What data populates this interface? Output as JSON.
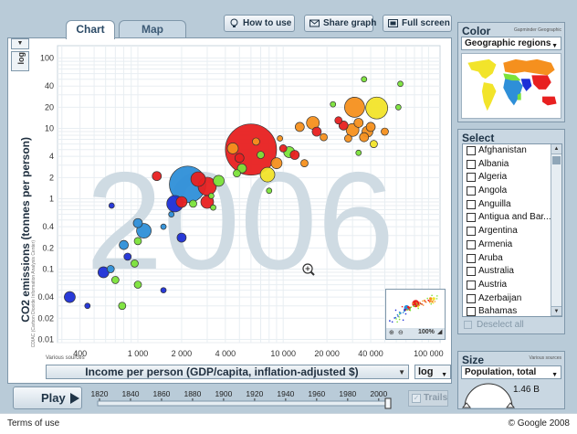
{
  "tabs": [
    {
      "label": "Chart"
    },
    {
      "label": "Map"
    }
  ],
  "toolbar": {
    "how_to_use": "How to use",
    "share_graph": "Share graph",
    "full_screen": "Full screen"
  },
  "y_axis": {
    "scale": "log",
    "title": "CO2 emissions (tonnes per person)",
    "source": "CDIAC (Carbon Dioxide Information Analysis Center)"
  },
  "x_axis": {
    "scale": "log",
    "title": "Income per person (GDP/capita, inflation-adjusted $)",
    "source": "Various sources"
  },
  "year_watermark": "2006",
  "play": {
    "label": "Play"
  },
  "timeline": {
    "ticks": [
      "1820",
      "1840",
      "1860",
      "1880",
      "1900",
      "1920",
      "1940",
      "1960",
      "1980",
      "2000"
    ],
    "current_year": 2006,
    "range": [
      1820,
      2006
    ]
  },
  "trails": {
    "label": "Trails"
  },
  "color_panel": {
    "title": "Color",
    "source": "Gapminder Geographic",
    "selected": "Geographic regions"
  },
  "select_panel": {
    "title": "Select",
    "countries": [
      "Afghanistan",
      "Albania",
      "Algeria",
      "Angola",
      "Anguilla",
      "Antigua and Bar...",
      "Argentina",
      "Armenia",
      "Aruba",
      "Australia",
      "Austria",
      "Azerbaijan",
      "Bahamas"
    ],
    "deselect_all": "Deselect all"
  },
  "size_panel": {
    "title": "Size",
    "source": "Various sources",
    "selected": "Population, total",
    "value": "1.46 B"
  },
  "minimap": {
    "zoom": "100%"
  },
  "footer": {
    "terms": "Terms of use",
    "copyright": "© Google 2008"
  },
  "colors": {
    "africa": "#2e8fd8",
    "south_asia": "#1d2fd6",
    "europe_central_asia": "#f2e42a",
    "middle_east": "#7be33a",
    "east_asia": "#e82020",
    "america": "#f5901e"
  },
  "chart_data": {
    "type": "scatter",
    "xlabel": "Income per person (GDP/capita, inflation-adjusted $)",
    "ylabel": "CO2 emissions (tonnes per person)",
    "xscale": "log",
    "yscale": "log",
    "xlim": [
      280,
      120000
    ],
    "ylim": [
      0.009,
      150
    ],
    "x_ticks": [
      400,
      1000,
      2000,
      4000,
      10000,
      20000,
      40000,
      100000
    ],
    "x_tick_labels": [
      "400",
      "1 000",
      "2 000",
      "4 000",
      "10 000",
      "20 000",
      "40 000",
      "100 000"
    ],
    "y_ticks": [
      0.01,
      0.02,
      0.04,
      0.1,
      0.2,
      0.4,
      1,
      2,
      4,
      10,
      20,
      40,
      100
    ],
    "y_tick_labels": [
      "0.01",
      "0.02",
      "0.04",
      "0.1",
      "0.2",
      "0.4",
      "1",
      "2",
      "4",
      "10",
      "20",
      "40",
      "100"
    ],
    "points": [
      {
        "x": 6000,
        "y": 5.0,
        "s": 28,
        "c": "east_asia"
      },
      {
        "x": 2200,
        "y": 1.6,
        "s": 20,
        "c": "africa"
      },
      {
        "x": 2600,
        "y": 1.9,
        "s": 8,
        "c": "east_asia"
      },
      {
        "x": 3000,
        "y": 1.5,
        "s": 10,
        "c": "east_asia"
      },
      {
        "x": 3600,
        "y": 1.8,
        "s": 6,
        "c": "middle_east"
      },
      {
        "x": 3000,
        "y": 0.9,
        "s": 7,
        "c": "east_asia"
      },
      {
        "x": 1350,
        "y": 2.1,
        "s": 5,
        "c": "east_asia"
      },
      {
        "x": 2000,
        "y": 0.9,
        "s": 6,
        "c": "east_asia"
      },
      {
        "x": 2400,
        "y": 0.85,
        "s": 4,
        "c": "middle_east"
      },
      {
        "x": 1800,
        "y": 0.85,
        "s": 9,
        "c": "south_asia"
      },
      {
        "x": 1100,
        "y": 0.35,
        "s": 8,
        "c": "africa"
      },
      {
        "x": 1000,
        "y": 0.45,
        "s": 5,
        "c": "africa"
      },
      {
        "x": 1000,
        "y": 0.25,
        "s": 4,
        "c": "middle_east"
      },
      {
        "x": 2000,
        "y": 0.28,
        "s": 5,
        "c": "south_asia"
      },
      {
        "x": 800,
        "y": 0.22,
        "s": 5,
        "c": "africa"
      },
      {
        "x": 850,
        "y": 0.15,
        "s": 4,
        "c": "south_asia"
      },
      {
        "x": 950,
        "y": 0.12,
        "s": 4,
        "c": "middle_east"
      },
      {
        "x": 580,
        "y": 0.09,
        "s": 6,
        "c": "south_asia"
      },
      {
        "x": 650,
        "y": 0.1,
        "s": 4,
        "c": "africa"
      },
      {
        "x": 700,
        "y": 0.07,
        "s": 4,
        "c": "middle_east"
      },
      {
        "x": 1000,
        "y": 0.06,
        "s": 4,
        "c": "middle_east"
      },
      {
        "x": 1500,
        "y": 0.05,
        "s": 3,
        "c": "south_asia"
      },
      {
        "x": 340,
        "y": 0.04,
        "s": 6,
        "c": "south_asia"
      },
      {
        "x": 450,
        "y": 0.03,
        "s": 3,
        "c": "south_asia"
      },
      {
        "x": 780,
        "y": 0.03,
        "s": 4,
        "c": "middle_east"
      },
      {
        "x": 660,
        "y": 0.8,
        "s": 3,
        "c": "south_asia"
      },
      {
        "x": 4500,
        "y": 5.2,
        "s": 6,
        "c": "america"
      },
      {
        "x": 5000,
        "y": 3.8,
        "s": 5,
        "c": "east_asia"
      },
      {
        "x": 6500,
        "y": 6.5,
        "s": 4,
        "c": "america"
      },
      {
        "x": 7000,
        "y": 4.2,
        "s": 4,
        "c": "middle_east"
      },
      {
        "x": 7800,
        "y": 2.2,
        "s": 8,
        "c": "europe_central_asia"
      },
      {
        "x": 5200,
        "y": 2.7,
        "s": 5,
        "c": "middle_east"
      },
      {
        "x": 4800,
        "y": 2.3,
        "s": 4,
        "c": "middle_east"
      },
      {
        "x": 9000,
        "y": 3.2,
        "s": 6,
        "c": "america"
      },
      {
        "x": 10000,
        "y": 5.2,
        "s": 4,
        "c": "east_asia"
      },
      {
        "x": 11000,
        "y": 4.6,
        "s": 6,
        "c": "middle_east"
      },
      {
        "x": 12000,
        "y": 4.2,
        "s": 5,
        "c": "east_asia"
      },
      {
        "x": 14000,
        "y": 3.2,
        "s": 4,
        "c": "america"
      },
      {
        "x": 16000,
        "y": 12,
        "s": 7,
        "c": "america"
      },
      {
        "x": 17000,
        "y": 9,
        "s": 5,
        "c": "east_asia"
      },
      {
        "x": 19000,
        "y": 7.5,
        "s": 4,
        "c": "america"
      },
      {
        "x": 13000,
        "y": 10.5,
        "s": 5,
        "c": "america"
      },
      {
        "x": 26000,
        "y": 11,
        "s": 5,
        "c": "east_asia"
      },
      {
        "x": 30000,
        "y": 9.5,
        "s": 7,
        "c": "america"
      },
      {
        "x": 33000,
        "y": 12,
        "s": 5,
        "c": "america"
      },
      {
        "x": 38000,
        "y": 9,
        "s": 6,
        "c": "america"
      },
      {
        "x": 40000,
        "y": 10.5,
        "s": 5,
        "c": "america"
      },
      {
        "x": 44000,
        "y": 19.5,
        "s": 12,
        "c": "europe_central_asia"
      },
      {
        "x": 31000,
        "y": 20,
        "s": 11,
        "c": "america"
      },
      {
        "x": 24000,
        "y": 13,
        "s": 4,
        "c": "east_asia"
      },
      {
        "x": 28000,
        "y": 7.2,
        "s": 4,
        "c": "america"
      },
      {
        "x": 36000,
        "y": 7.5,
        "s": 5,
        "c": "america"
      },
      {
        "x": 42000,
        "y": 6,
        "s": 4,
        "c": "europe_central_asia"
      },
      {
        "x": 50000,
        "y": 9,
        "s": 4,
        "c": "america"
      },
      {
        "x": 33000,
        "y": 4.5,
        "s": 3,
        "c": "middle_east"
      },
      {
        "x": 62000,
        "y": 20,
        "s": 3,
        "c": "middle_east"
      },
      {
        "x": 64000,
        "y": 43,
        "s": 3,
        "c": "middle_east"
      },
      {
        "x": 36000,
        "y": 50,
        "s": 3,
        "c": "middle_east"
      },
      {
        "x": 22000,
        "y": 22,
        "s": 3,
        "c": "middle_east"
      },
      {
        "x": 9500,
        "y": 7.2,
        "s": 3,
        "c": "america"
      },
      {
        "x": 8000,
        "y": 1.3,
        "s": 3,
        "c": "middle_east"
      },
      {
        "x": 3200,
        "y": 1.1,
        "s": 3,
        "c": "middle_east"
      },
      {
        "x": 3300,
        "y": 0.75,
        "s": 3,
        "c": "middle_east"
      },
      {
        "x": 1500,
        "y": 0.4,
        "s": 3,
        "c": "africa"
      },
      {
        "x": 1700,
        "y": 0.6,
        "s": 3,
        "c": "africa"
      }
    ]
  }
}
